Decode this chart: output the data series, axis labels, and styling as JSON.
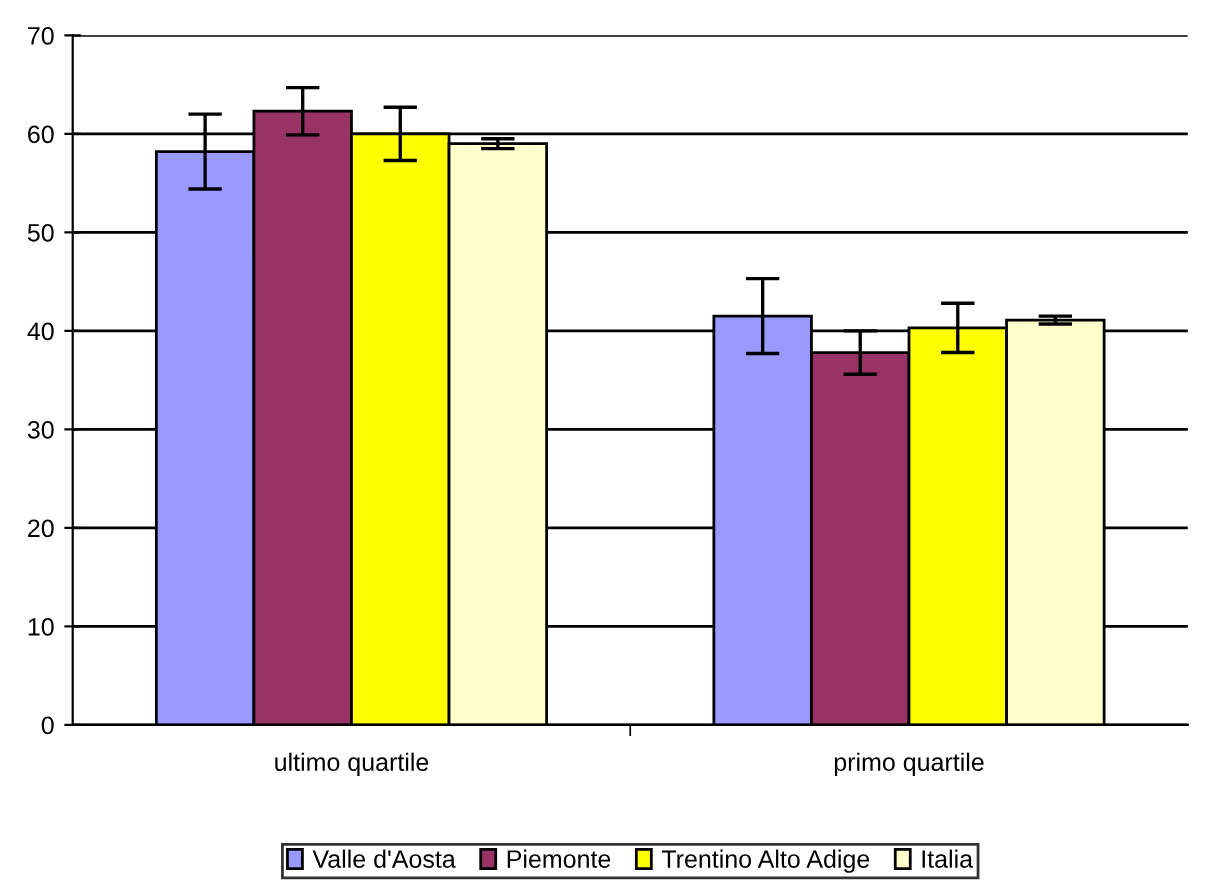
{
  "chart_data": {
    "type": "bar",
    "categories": [
      "ultimo quartile",
      "primo quartile"
    ],
    "series": [
      {
        "name": "Valle d'Aosta",
        "color": "#9999ff",
        "values": [
          58.2,
          41.5
        ],
        "errors": [
          3.8,
          3.8
        ]
      },
      {
        "name": "Piemonte",
        "color": "#993366",
        "values": [
          62.3,
          37.8
        ],
        "errors": [
          2.4,
          2.2
        ]
      },
      {
        "name": "Trentino Alto Adige",
        "color": "#ffff00",
        "values": [
          60.0,
          40.3
        ],
        "errors": [
          2.7,
          2.5
        ]
      },
      {
        "name": "Italia",
        "color": "#ffffcc",
        "values": [
          59.0,
          41.1
        ],
        "errors": [
          0.5,
          0.4
        ]
      }
    ],
    "ylim": [
      0,
      70
    ],
    "yticks": [
      0,
      10,
      20,
      30,
      40,
      50,
      60,
      70
    ],
    "grid": "y",
    "legend": "bottom"
  }
}
